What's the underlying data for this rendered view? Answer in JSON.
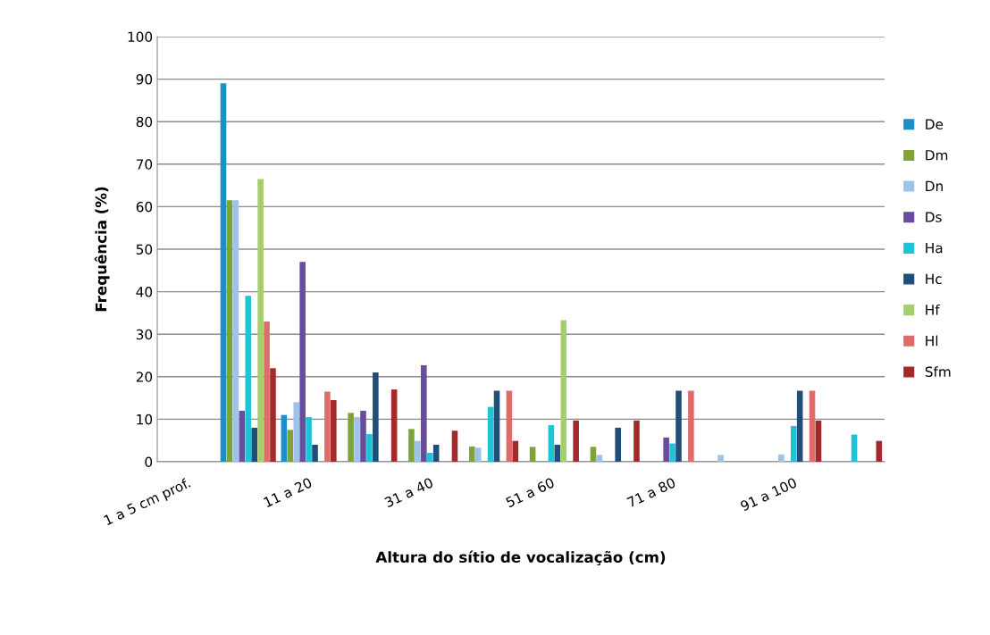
{
  "chart_data": {
    "type": "bar",
    "xlabel": "Altura do sítio de vocalização (cm)",
    "ylabel": "Frequência (%)",
    "categories": [
      "1 a 5 cm prof.",
      null,
      "11 a 20",
      null,
      "31 a 40",
      null,
      "51 a 60",
      null,
      "71 a 80",
      null,
      "91 a 100",
      null
    ],
    "series": [
      {
        "name": "De",
        "color": "#1a8fc9",
        "values": [
          null,
          89,
          11,
          null,
          null,
          null,
          null,
          null,
          null,
          null,
          null,
          null
        ]
      },
      {
        "name": "Dm",
        "color": "#7fa33a",
        "values": [
          null,
          61.5,
          7.5,
          11.5,
          7.7,
          3.6,
          3.5,
          3.5,
          null,
          null,
          null,
          null
        ]
      },
      {
        "name": "Dn",
        "color": "#9dc3e6",
        "values": [
          null,
          61.5,
          14,
          10.5,
          4.9,
          3.3,
          null,
          1.6,
          null,
          1.6,
          1.7,
          null
        ]
      },
      {
        "name": "Ds",
        "color": "#6a4c9c",
        "values": [
          null,
          12,
          47,
          12,
          22.7,
          null,
          null,
          null,
          5.7,
          null,
          null,
          null
        ]
      },
      {
        "name": "Ha",
        "color": "#1fc3d6",
        "values": [
          null,
          39,
          10.5,
          6.5,
          2.1,
          12.9,
          8.6,
          null,
          4.3,
          null,
          8.4,
          6.4
        ]
      },
      {
        "name": "Hc",
        "color": "#1f4e79",
        "values": [
          null,
          8,
          4,
          21,
          4,
          16.7,
          4,
          8,
          16.7,
          null,
          16.7,
          null
        ]
      },
      {
        "name": "Hf",
        "color": "#a6cf6a",
        "values": [
          null,
          66.5,
          null,
          null,
          null,
          null,
          33.3,
          null,
          null,
          null,
          null,
          null
        ]
      },
      {
        "name": "Hl",
        "color": "#e06b6b",
        "values": [
          null,
          33,
          16.5,
          null,
          null,
          16.7,
          null,
          null,
          16.7,
          null,
          16.7,
          null
        ]
      },
      {
        "name": "Sfm",
        "color": "#a32a2a",
        "values": [
          null,
          22,
          14.5,
          17,
          7.3,
          4.9,
          9.7,
          9.7,
          null,
          null,
          9.7,
          4.9
        ]
      }
    ],
    "ylim": [
      0,
      100
    ],
    "yticks": [
      0,
      10,
      20,
      30,
      40,
      50,
      60,
      70,
      80,
      90,
      100
    ],
    "grid": "y",
    "legend": "right"
  }
}
